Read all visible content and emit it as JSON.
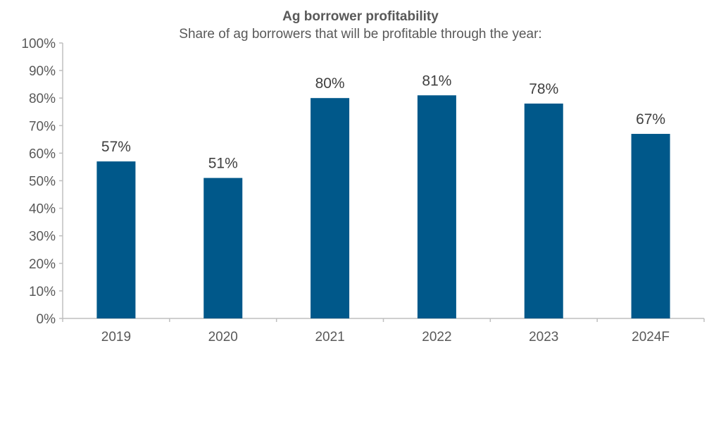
{
  "chart_data": {
    "type": "bar",
    "title": "Ag borrower profitability",
    "subtitle": "Share of ag borrowers that will be profitable through the year:",
    "categories": [
      "2019",
      "2020",
      "2021",
      "2022",
      "2023",
      "2024F"
    ],
    "values": [
      57,
      51,
      80,
      81,
      78,
      67
    ],
    "data_labels": [
      "57%",
      "51%",
      "80%",
      "81%",
      "78%",
      "67%"
    ],
    "xlabel": "",
    "ylabel": "",
    "ylim": [
      0,
      100
    ],
    "yticks": [
      "0%",
      "10%",
      "20%",
      "30%",
      "40%",
      "50%",
      "60%",
      "70%",
      "80%",
      "90%",
      "100%"
    ],
    "grid": false,
    "legend": "none",
    "colors": {
      "bar": "#00588A",
      "axis": "#BFBFBF"
    }
  }
}
